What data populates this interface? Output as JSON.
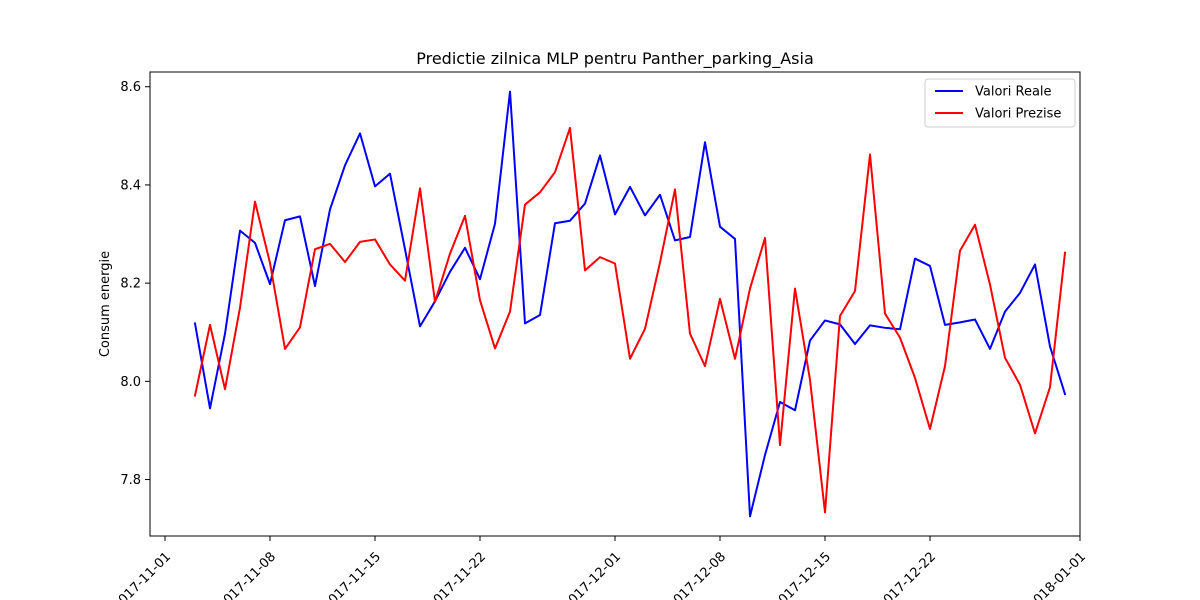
{
  "chart_data": {
    "type": "line",
    "title": "Predictie zilnica MLP pentru Panther_parking_Asia",
    "xlabel": "",
    "ylabel": "Consum energie",
    "x_start": "2017-11-03",
    "xlim": [
      "2017-10-31",
      "2018-01-01"
    ],
    "ylim": [
      7.685,
      8.63
    ],
    "x_ticks": [
      "2017-11-01",
      "2017-11-08",
      "2017-11-15",
      "2017-11-22",
      "2017-12-01",
      "2017-12-08",
      "2017-12-15",
      "2017-12-22",
      "2018-01-01"
    ],
    "y_ticks": [
      "7.8",
      "8.0",
      "8.2",
      "8.4",
      "8.6"
    ],
    "legend_position": "top-right",
    "grid": false,
    "series": [
      {
        "name": "Valori Reale",
        "color": "#0000ff",
        "values": [
          8.118,
          7.945,
          8.097,
          8.307,
          8.282,
          8.198,
          8.328,
          8.336,
          8.194,
          8.35,
          8.44,
          8.505,
          8.397,
          8.423,
          8.269,
          8.112,
          8.163,
          8.223,
          8.272,
          8.208,
          8.321,
          8.59,
          8.118,
          8.135,
          8.322,
          8.327,
          8.362,
          8.46,
          8.34,
          8.396,
          8.338,
          8.38,
          8.287,
          8.294,
          8.487,
          8.315,
          8.29,
          7.725,
          7.85,
          7.958,
          7.941,
          8.083,
          8.124,
          8.116,
          8.076,
          8.114,
          8.109,
          8.106,
          8.25,
          8.235,
          8.115,
          8.12,
          8.126,
          8.066,
          8.142,
          8.18,
          8.238,
          8.071,
          7.974
        ]
      },
      {
        "name": "Valori Prezise",
        "color": "#ff0000",
        "values": [
          7.971,
          8.115,
          7.984,
          8.15,
          8.366,
          8.241,
          8.066,
          8.11,
          8.269,
          8.28,
          8.243,
          8.284,
          8.289,
          8.238,
          8.205,
          8.393,
          8.162,
          8.26,
          8.337,
          8.165,
          8.067,
          8.142,
          8.36,
          8.385,
          8.426,
          8.516,
          8.226,
          8.253,
          8.24,
          8.046,
          8.107,
          8.242,
          8.391,
          8.097,
          8.031,
          8.168,
          8.046,
          8.189,
          8.292,
          7.87,
          8.189,
          8.003,
          7.733,
          8.133,
          8.184,
          8.462,
          8.138,
          8.089,
          8.007,
          7.903,
          8.031,
          8.266,
          8.319,
          8.197,
          8.048,
          7.993,
          7.894,
          7.988,
          8.262
        ]
      }
    ]
  }
}
